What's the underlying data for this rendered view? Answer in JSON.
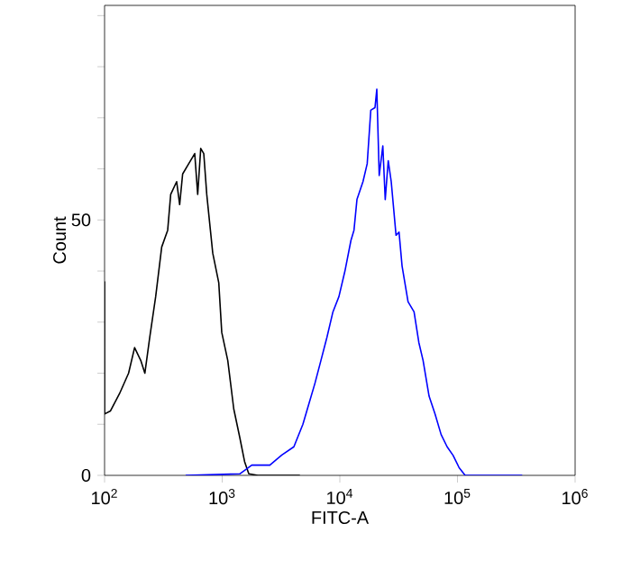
{
  "chart_data": {
    "type": "line",
    "xlabel": "FITC-A",
    "ylabel": "Count",
    "log": "x",
    "xlim": [
      100,
      1000000
    ],
    "ylim": [
      0,
      92
    ],
    "xticks": [
      {
        "value": 100,
        "label": "10$^{2}$"
      },
      {
        "value": 1000,
        "label": "10$^{3}$"
      },
      {
        "value": 10000,
        "label": "10$^{4}$"
      },
      {
        "value": 100000,
        "label": "10$^{5}$"
      },
      {
        "value": 1000000,
        "label": "10$^{6}$"
      }
    ],
    "yticks": [
      0,
      {
        "value": 10,
        "label": null
      },
      {
        "value": 20,
        "label": null
      },
      {
        "value": 30,
        "label": null
      },
      {
        "value": 40,
        "label": null
      },
      50,
      {
        "value": 60,
        "label": null
      },
      {
        "value": 70,
        "label": null
      },
      {
        "value": 80,
        "label": null
      },
      {
        "value": 90,
        "label": null
      }
    ],
    "series": [
      {
        "color": "#000000",
        "x": [
          100,
          100,
          112,
          134,
          160,
          180,
          203,
          220,
          242,
          272,
          306,
          344,
          365,
          410,
          435,
          461,
          519,
          584,
          619,
          657,
          697,
          739,
          831,
          935,
          991,
          1115,
          1254,
          1411,
          1550,
          1683,
          2008,
          4574
        ],
        "values": [
          38,
          12,
          12.6,
          16,
          20,
          25,
          22.5,
          20,
          27,
          35,
          44.7,
          48,
          55,
          57.5,
          53,
          59,
          61,
          63,
          55,
          64,
          63,
          55,
          43.5,
          37.7,
          28,
          22.5,
          13,
          7.4,
          2.7,
          0.3,
          0,
          0
        ]
      },
      {
        "color": "#0000ff",
        "x": [
          489,
          1411,
          1785,
          2541,
          3214,
          4067,
          4852,
          5458,
          6138,
          6906,
          7767,
          8735,
          9824,
          11050,
          12430,
          13190,
          13980,
          15730,
          17080,
          18330,
          19900,
          20620,
          21610,
          23190,
          24310,
          25780,
          27340,
          30040,
          31860,
          33800,
          38000,
          42740,
          46960,
          51000,
          57370,
          64520,
          72580,
          81630,
          91830,
          103300,
          116200,
          355200
        ],
        "values": [
          0,
          0.3,
          2,
          2,
          4,
          5.6,
          10,
          14,
          18,
          22.5,
          27,
          32,
          35,
          40,
          46,
          48,
          54,
          57.5,
          61,
          71.5,
          72,
          75.6,
          58.7,
          64.5,
          54,
          61.6,
          57.5,
          47,
          47.6,
          41,
          34,
          32,
          26,
          22.5,
          15.5,
          12,
          8,
          5.6,
          3.9,
          1.5,
          0,
          0
        ]
      }
    ]
  }
}
